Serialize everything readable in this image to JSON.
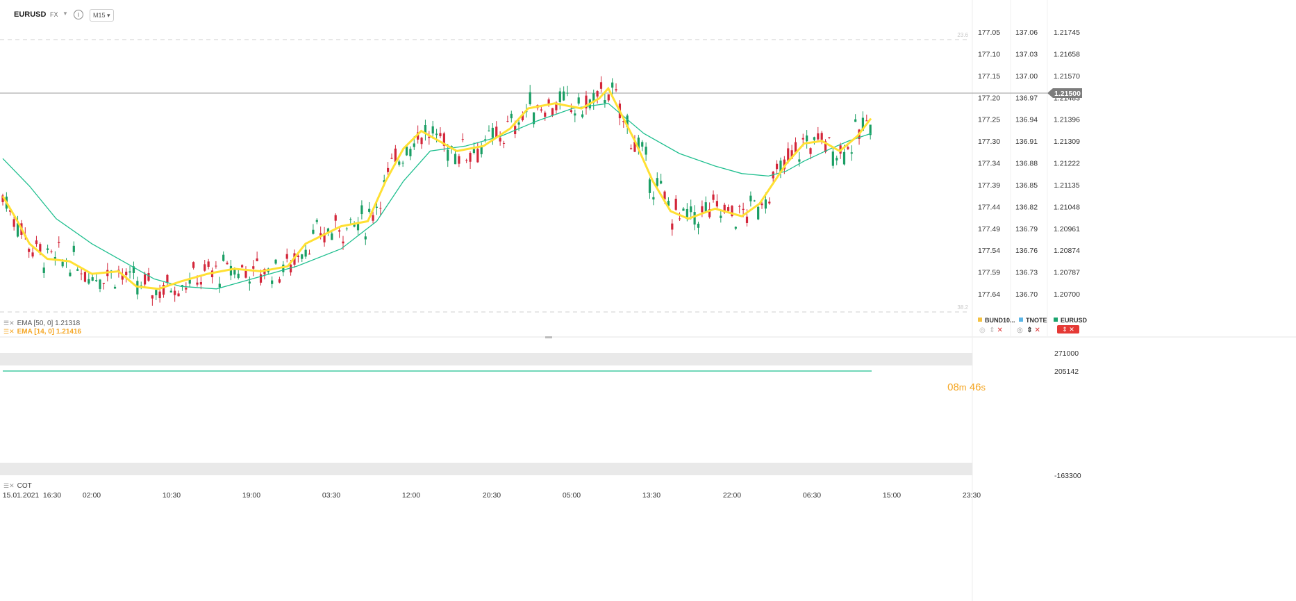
{
  "header": {
    "symbol": "EURUSD",
    "market": "FX",
    "timeframe": "M15"
  },
  "axes": {
    "col1": [
      "177.05",
      "177.10",
      "177.15",
      "177.20",
      "177.25",
      "177.30",
      "177.34",
      "177.39",
      "177.44",
      "177.49",
      "177.54",
      "177.59",
      "177.64"
    ],
    "col2": [
      "137.06",
      "137.03",
      "137.00",
      "136.97",
      "136.94",
      "136.91",
      "136.88",
      "136.85",
      "136.82",
      "136.79",
      "136.76",
      "136.73",
      "136.70"
    ],
    "col3": [
      "1.21745",
      "1.21658",
      "1.21570",
      "1.21483",
      "1.21396",
      "1.21309",
      "1.21222",
      "1.21135",
      "1.21048",
      "1.20961",
      "1.20874",
      "1.20787",
      "1.20700"
    ],
    "current_price": "1.21500",
    "fib_top": "23.6",
    "fib_bottom": "38.2"
  },
  "indicators": {
    "ema50": "EMA [50, 0] 1.21318",
    "ema14": "EMA [14, 0] 1.21416"
  },
  "timer": {
    "minutes": "08",
    "m": "m",
    "seconds": "46",
    "s": "s"
  },
  "instruments": [
    {
      "label": "BUND10...",
      "color": "#f5c242"
    },
    {
      "label": "TNOTE",
      "color": "#5bb5e6"
    },
    {
      "label": "EURUSD",
      "color": "#1aa36d"
    }
  ],
  "lower_panel": {
    "label": "COT",
    "axis": [
      "271000",
      "205142",
      "-163300"
    ],
    "line_value": 205142
  },
  "chart_data": {
    "type": "candlestick",
    "title": "",
    "x_ticks": [
      "15.01.2021",
      "16:30",
      "02:00",
      "10:30",
      "19:00",
      "03:30",
      "12:00",
      "20:30",
      "05:00",
      "13:30",
      "22:00",
      "06:30",
      "15:00",
      "23:30"
    ],
    "ylim": [
      1.207,
      1.21745
    ],
    "ema50": [
      [
        0,
        1.2124
      ],
      [
        30,
        1.2113
      ],
      [
        60,
        1.21
      ],
      [
        100,
        1.209
      ],
      [
        140,
        1.2082
      ],
      [
        170,
        1.2076
      ],
      [
        200,
        1.2073
      ],
      [
        240,
        1.2072
      ],
      [
        280,
        1.2076
      ],
      [
        330,
        1.2081
      ],
      [
        380,
        1.2088
      ],
      [
        420,
        1.2099
      ],
      [
        450,
        1.2115
      ],
      [
        480,
        1.2127
      ],
      [
        520,
        1.2129
      ],
      [
        560,
        1.2133
      ],
      [
        600,
        1.2139
      ],
      [
        640,
        1.2144
      ],
      [
        680,
        1.2146
      ],
      [
        690,
        1.2143
      ],
      [
        720,
        1.2134
      ],
      [
        760,
        1.2126
      ],
      [
        800,
        1.2121
      ],
      [
        830,
        1.2118
      ],
      [
        860,
        1.2117
      ],
      [
        880,
        1.2119
      ],
      [
        900,
        1.2123
      ],
      [
        930,
        1.2128
      ],
      [
        950,
        1.2131
      ],
      [
        975,
        1.2134
      ]
    ],
    "ema14": [
      [
        0,
        1.2109
      ],
      [
        15,
        1.21
      ],
      [
        30,
        1.209
      ],
      [
        50,
        1.2084
      ],
      [
        75,
        1.2083
      ],
      [
        100,
        1.2078
      ],
      [
        130,
        1.2079
      ],
      [
        150,
        1.2073
      ],
      [
        175,
        1.2072
      ],
      [
        200,
        1.2075
      ],
      [
        230,
        1.2078
      ],
      [
        260,
        1.208
      ],
      [
        290,
        1.2079
      ],
      [
        320,
        1.2081
      ],
      [
        340,
        1.209
      ],
      [
        380,
        1.2097
      ],
      [
        410,
        1.2099
      ],
      [
        430,
        1.2115
      ],
      [
        450,
        1.2128
      ],
      [
        470,
        1.2135
      ],
      [
        490,
        1.2131
      ],
      [
        510,
        1.2127
      ],
      [
        540,
        1.2129
      ],
      [
        570,
        1.2136
      ],
      [
        590,
        1.2144
      ],
      [
        620,
        1.2146
      ],
      [
        650,
        1.2144
      ],
      [
        670,
        1.2148
      ],
      [
        680,
        1.2152
      ],
      [
        690,
        1.2145
      ],
      [
        710,
        1.2131
      ],
      [
        730,
        1.2115
      ],
      [
        750,
        1.2103
      ],
      [
        770,
        1.21
      ],
      [
        800,
        1.2104
      ],
      [
        830,
        1.2101
      ],
      [
        850,
        1.2106
      ],
      [
        880,
        1.2122
      ],
      [
        900,
        1.213
      ],
      [
        920,
        1.2131
      ],
      [
        940,
        1.2127
      ],
      [
        960,
        1.2133
      ],
      [
        975,
        1.214
      ]
    ]
  }
}
